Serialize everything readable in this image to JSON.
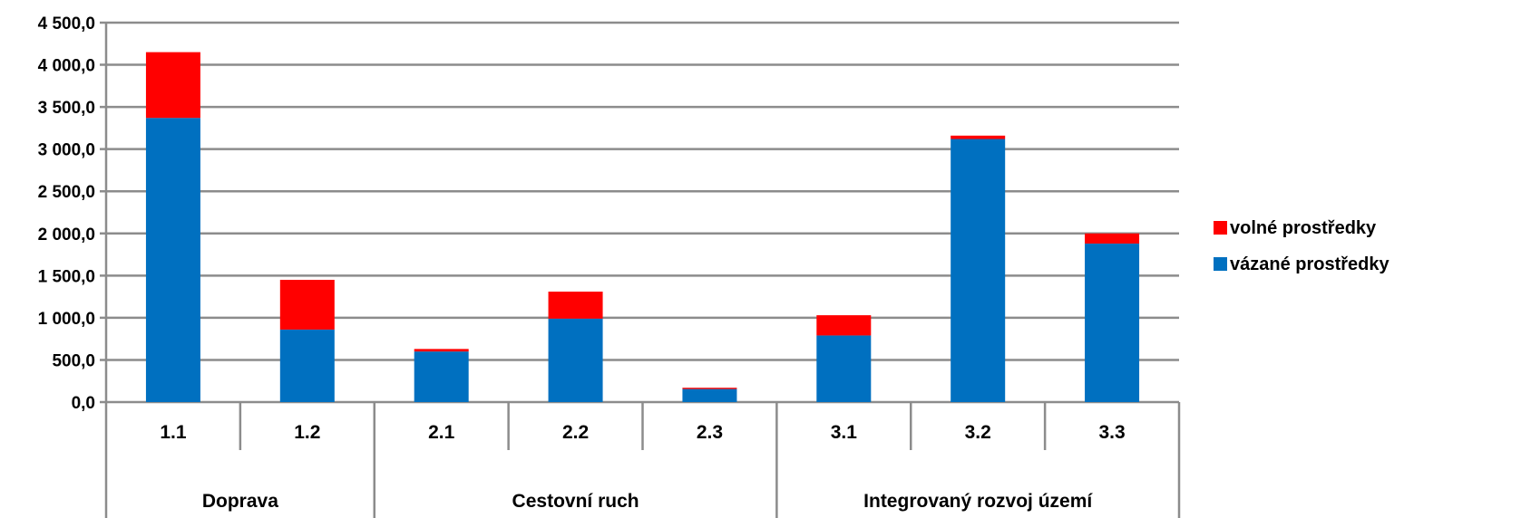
{
  "chart_data": {
    "type": "bar",
    "stacked": true,
    "categories": [
      "1.1",
      "1.2",
      "2.1",
      "2.2",
      "2.3",
      "3.1",
      "3.2",
      "3.3"
    ],
    "groups": [
      {
        "label": "Doprava",
        "categories": [
          "1.1",
          "1.2"
        ]
      },
      {
        "label": "Cestovní ruch",
        "categories": [
          "2.1",
          "2.2",
          "2.3"
        ]
      },
      {
        "label": "Integrovaný rozvoj území",
        "categories": [
          "3.1",
          "3.2",
          "3.3"
        ]
      }
    ],
    "series": [
      {
        "name": "vázané prostředky",
        "color": "#0070C0",
        "values": [
          3370,
          860,
          600,
          990,
          155,
          790,
          3120,
          1880
        ]
      },
      {
        "name": "volné prostředky",
        "color": "#FF0000",
        "values": [
          780,
          590,
          30,
          320,
          15,
          240,
          40,
          120
        ]
      }
    ],
    "ylim": [
      0,
      4500
    ],
    "yticks": [
      0,
      500,
      1000,
      1500,
      2000,
      2500,
      3000,
      3500,
      4000,
      4500
    ],
    "ytick_labels": [
      "0,0",
      "500,0",
      "1 000,0",
      "1 500,0",
      "2 000,0",
      "2 500,0",
      "3 000,0",
      "3 500,0",
      "4 000,0",
      "4 500,0"
    ],
    "grid": true,
    "legend_position": "right",
    "legend_order": [
      "volné prostředky",
      "vázané prostředky"
    ]
  }
}
